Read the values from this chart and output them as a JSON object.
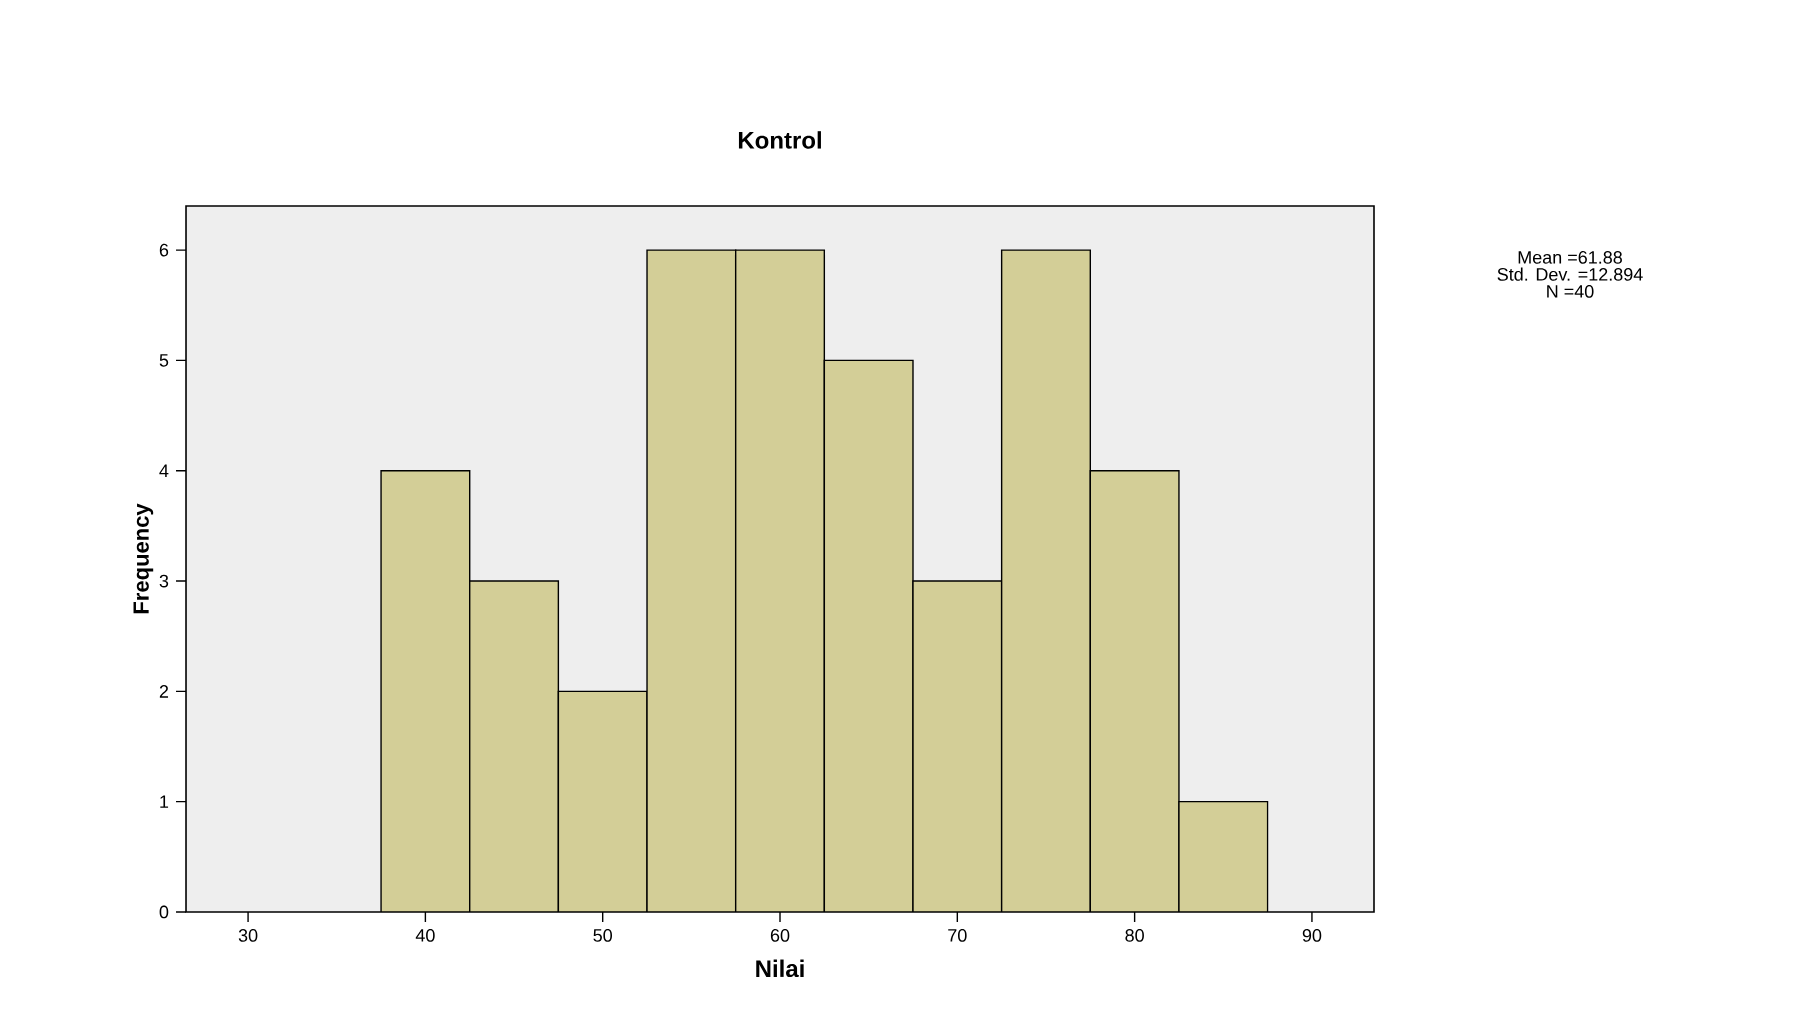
{
  "chart_data": {
    "type": "histogram",
    "title": "Kontrol",
    "xlabel": "Nilai",
    "ylabel": "Frequency",
    "bins": [
      37.5,
      42.5,
      47.5,
      52.5,
      57.5,
      62.5,
      67.5,
      72.5,
      77.5,
      82.5,
      87.5
    ],
    "values": [
      4,
      3,
      2,
      6,
      6,
      5,
      3,
      6,
      4,
      1
    ],
    "color": "#d3ce97",
    "xlim": [
      26.5,
      93.5
    ],
    "xticks": [
      30,
      40,
      50,
      60,
      70,
      80,
      90
    ],
    "ylim": [
      0,
      6.4
    ],
    "yticks": [
      0,
      1,
      2,
      3,
      4,
      5,
      6
    ],
    "annotations": [
      "Mean =61.88",
      "Std. Dev. =12.894",
      "N =40"
    ]
  }
}
